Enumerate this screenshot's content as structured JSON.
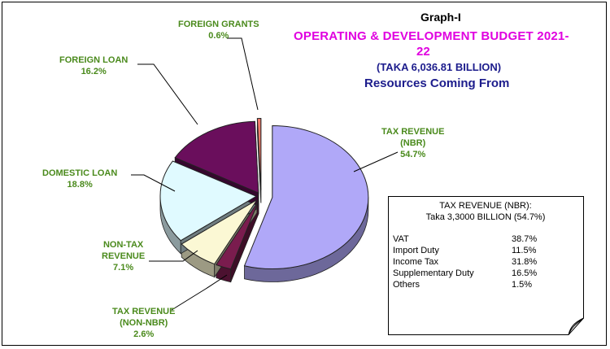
{
  "chart_data": {
    "type": "pie",
    "title": "Graph-I",
    "subtitle_line1": "OPERATING & DEVELOPMENT BUDGET 2021-",
    "subtitle_line2": "22",
    "subtitle_line3": "(TAKA 6,036.81 BILLION)",
    "subtitle_line4": "Resources Coming From",
    "slices": [
      {
        "label_line1": "TAX REVENUE",
        "label_line2": "(NBR)",
        "value": 54.7,
        "display": "54.7%",
        "color": "#b0a8f8"
      },
      {
        "label_line1": "TAX REVENUE",
        "label_line2": "(NON-NBR)",
        "value": 2.6,
        "display": "2.6%",
        "color": "#7a1c4e"
      },
      {
        "label_line1": "NON-TAX",
        "label_line2": "REVENUE",
        "value": 7.1,
        "display": "7.1%",
        "color": "#fbf8d4"
      },
      {
        "label_line1": "DOMESTIC LOAN",
        "label_line2": "",
        "value": 18.8,
        "display": "18.8%",
        "color": "#e0faff"
      },
      {
        "label_line1": "FOREIGN  LOAN",
        "label_line2": "",
        "value": 16.2,
        "display": "16.2%",
        "color": "#6a0e5c"
      },
      {
        "label_line1": "FOREIGN  GRANTS",
        "label_line2": "",
        "value": 0.6,
        "display": "0.6%",
        "color": "#f47c6c"
      }
    ]
  },
  "tax_box": {
    "heading": "TAX REVENUE (NBR):",
    "subheading": "Taka  3,3000 BILLION  (54.7%)",
    "rows": [
      {
        "name": "VAT",
        "value": "38.7%"
      },
      {
        "name": "Import Duty",
        "value": "11.5%"
      },
      {
        "name": "Income Tax",
        "value": "31.8%"
      },
      {
        "name": "Supplementary Duty",
        "value": "16.5%"
      },
      {
        "name": "Others",
        "value": "1.5%"
      }
    ]
  }
}
